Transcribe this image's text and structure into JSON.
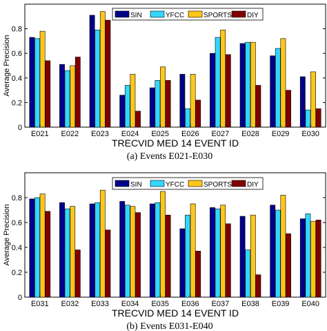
{
  "chart_data": [
    {
      "type": "bar",
      "caption": "(a)  Events E021-E030",
      "xlabel": "TRECVID MED 14 EVENT ID",
      "ylabel": "Average Precision",
      "ylim": [
        0,
        1
      ],
      "yticks": [
        0,
        0.2,
        0.4,
        0.6,
        0.8
      ],
      "grid": false,
      "legend_position": "top-right",
      "categories": [
        "E021",
        "E022",
        "E023",
        "E024",
        "E025",
        "E026",
        "E027",
        "E028",
        "E029",
        "E030"
      ],
      "series": [
        {
          "name": "SIN",
          "color": "#00008b",
          "values": [
            0.73,
            0.51,
            0.91,
            0.26,
            0.32,
            0.43,
            0.6,
            0.68,
            0.58,
            0.41
          ]
        },
        {
          "name": "YFCC",
          "color": "#33d6ff",
          "values": [
            0.72,
            0.46,
            0.79,
            0.34,
            0.38,
            0.15,
            0.73,
            0.69,
            0.64,
            0.14
          ]
        },
        {
          "name": "SPORTS",
          "color": "#ffc61a",
          "values": [
            0.78,
            0.5,
            0.94,
            0.43,
            0.49,
            0.43,
            0.79,
            0.69,
            0.72,
            0.45
          ]
        },
        {
          "name": "DIY",
          "color": "#800000",
          "values": [
            0.54,
            0.57,
            0.87,
            0.13,
            0.38,
            0.22,
            0.59,
            0.34,
            0.3,
            0.15
          ]
        }
      ]
    },
    {
      "type": "bar",
      "caption": "(b)  Events E031-E040",
      "xlabel": "TRECVID MED 14 EVENT ID",
      "ylabel": "Average Precision",
      "ylim": [
        0,
        1
      ],
      "yticks": [
        0,
        0.2,
        0.4,
        0.6,
        0.8
      ],
      "grid": false,
      "legend_position": "top-right",
      "categories": [
        "E031",
        "E032",
        "E033",
        "E034",
        "E035",
        "E036",
        "E037",
        "E038",
        "E039",
        "E040"
      ],
      "series": [
        {
          "name": "SIN",
          "color": "#00008b",
          "values": [
            0.79,
            0.76,
            0.75,
            0.77,
            0.75,
            0.55,
            0.72,
            0.65,
            0.74,
            0.63
          ]
        },
        {
          "name": "YFCC",
          "color": "#33d6ff",
          "values": [
            0.8,
            0.71,
            0.76,
            0.74,
            0.76,
            0.66,
            0.71,
            0.38,
            0.7,
            0.67
          ]
        },
        {
          "name": "SPORTS",
          "color": "#ffc61a",
          "values": [
            0.83,
            0.73,
            0.86,
            0.73,
            0.85,
            0.75,
            0.74,
            0.66,
            0.82,
            0.61
          ]
        },
        {
          "name": "DIY",
          "color": "#800000",
          "values": [
            0.69,
            0.38,
            0.54,
            0.68,
            0.66,
            0.37,
            0.59,
            0.18,
            0.51,
            0.62
          ]
        }
      ]
    }
  ]
}
